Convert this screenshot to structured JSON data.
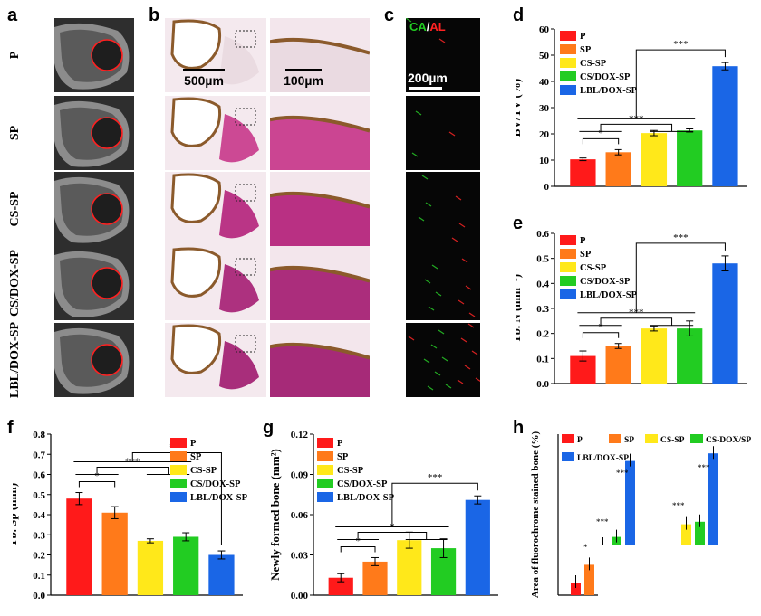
{
  "panel_letters": {
    "a": "a",
    "b": "b",
    "c": "c",
    "d": "d",
    "e": "e",
    "f": "f",
    "g": "g",
    "h": "h"
  },
  "row_labels": [
    "P",
    "SP",
    "CS-SP",
    "CS/DOX-SP",
    "LBL/DOX-SP"
  ],
  "scale_bars": {
    "b_left": "500µm",
    "b_right": "100µm",
    "c": "200µm"
  },
  "fluor_label": {
    "ca": "CA",
    "sep": "/",
    "al": "AL"
  },
  "colors": {
    "P": "#ff1a1a",
    "SP": "#ff7a1a",
    "CS-SP": "#ffe81a",
    "CS/DOX-SP": "#22cc22",
    "LBL/DOX-SP": "#1a66e6"
  },
  "chart_data": [
    {
      "id": "d",
      "type": "bar",
      "categories": [
        "P",
        "SP",
        "CS-SP",
        "CS/DOX-SP",
        "LBL/DOX-SP"
      ],
      "values": [
        10.3,
        13.0,
        20.3,
        21.3,
        45.8
      ],
      "errors": [
        0.5,
        1.0,
        1.0,
        0.6,
        1.4
      ],
      "ylabel": "BV/TV (%)",
      "ylim": [
        0,
        60
      ],
      "yticks": [
        0,
        10,
        20,
        30,
        40,
        50,
        60
      ],
      "ytick_labels": [
        "0",
        "10",
        "20",
        "30",
        "40",
        "50",
        "60"
      ],
      "legend": [
        "P",
        "SP",
        "CS-SP",
        "CS/DOX-SP",
        "LBL/DOX-SP"
      ],
      "legend_position": "top-left",
      "significance": [
        {
          "groups": [
            "P",
            "SP"
          ],
          "label": "*"
        },
        {
          "groups": [
            "P-SP",
            "CS-SP/CS/DOX-SP"
          ],
          "label": "***"
        },
        {
          "groups": [
            "all",
            "LBL/DOX-SP"
          ],
          "label": "***"
        }
      ]
    },
    {
      "id": "e",
      "type": "bar",
      "categories": [
        "P",
        "SP",
        "CS-SP",
        "CS/DOX-SP",
        "LBL/DOX-SP"
      ],
      "values": [
        0.11,
        0.15,
        0.22,
        0.22,
        0.48
      ],
      "errors": [
        0.02,
        0.01,
        0.01,
        0.03,
        0.03
      ],
      "ylabel": "Tb. N (mm⁻¹)",
      "ylim": [
        0,
        0.6
      ],
      "yticks": [
        0,
        0.1,
        0.2,
        0.3,
        0.4,
        0.5,
        0.6
      ],
      "ytick_labels": [
        "0.0",
        "0.1",
        "0.2",
        "0.3",
        "0.4",
        "0.5",
        "0.6"
      ],
      "legend": [
        "P",
        "SP",
        "CS-SP",
        "CS/DOX-SP",
        "LBL/DOX-SP"
      ],
      "legend_position": "top-left",
      "significance": [
        {
          "groups": [
            "P",
            "SP"
          ],
          "label": "*"
        },
        {
          "groups": [
            "P-SP",
            "CS-SP/CS/DOX-SP"
          ],
          "label": "***"
        },
        {
          "groups": [
            "all",
            "LBL/DOX-SP"
          ],
          "label": "***"
        }
      ]
    },
    {
      "id": "f",
      "type": "bar",
      "categories": [
        "P",
        "SP",
        "CS-SP",
        "CS/DOX-SP",
        "LBL/DOX-SP"
      ],
      "values": [
        0.48,
        0.41,
        0.27,
        0.29,
        0.2
      ],
      "errors": [
        0.03,
        0.03,
        0.01,
        0.02,
        0.02
      ],
      "ylabel": "Tb. Sp (mm)",
      "ylim": [
        0,
        0.8
      ],
      "yticks": [
        0,
        0.1,
        0.2,
        0.3,
        0.4,
        0.5,
        0.6,
        0.7,
        0.8
      ],
      "ytick_labels": [
        "0.0",
        "0.1",
        "0.2",
        "0.3",
        "0.4",
        "0.5",
        "0.6",
        "0.7",
        "0.8"
      ],
      "legend": [
        "P",
        "SP",
        "CS-SP",
        "CS/DOX-SP",
        "LBL/DOX-SP"
      ],
      "legend_position": "top-right",
      "significance": [
        {
          "groups": [
            "P",
            "SP"
          ],
          "label": "*"
        },
        {
          "groups": [
            "P-SP",
            "CS-SP/CS/DOX-SP"
          ],
          "label": "***"
        },
        {
          "groups": [
            "all",
            "LBL/DOX-SP"
          ],
          "label": "***"
        }
      ]
    },
    {
      "id": "g",
      "type": "bar",
      "categories": [
        "P",
        "SP",
        "CS-SP",
        "CS/DOX-SP",
        "LBL/DOX-SP"
      ],
      "values": [
        0.013,
        0.025,
        0.041,
        0.035,
        0.071
      ],
      "errors": [
        0.003,
        0.003,
        0.006,
        0.007,
        0.003
      ],
      "ylabel": "Newly formed bone (mm²)",
      "ylim": [
        0,
        0.12
      ],
      "yticks": [
        0,
        0.03,
        0.06,
        0.09,
        0.12
      ],
      "ytick_labels": [
        "0.00",
        "0.03",
        "0.06",
        "0.09",
        "0.12"
      ],
      "legend": [
        "P",
        "SP",
        "CS-SP",
        "CS/DOX-SP",
        "LBL/DOX-SP"
      ],
      "legend_position": "top-left",
      "significance": [
        {
          "groups": [
            "P",
            "SP"
          ],
          "label": "*"
        },
        {
          "groups": [
            "P-SP",
            "CS-SP/CS/DOX-SP"
          ],
          "label": "*"
        },
        {
          "groups": [
            "all",
            "LBL/DOX-SP"
          ],
          "label": "***"
        }
      ]
    },
    {
      "id": "h",
      "type": "bar",
      "ylabel": "Area of fluorochrome stained bone (%)",
      "legend": [
        "P",
        "SP",
        "CS-SP",
        "CS-DOX/SP",
        "LBL/DOX-SP"
      ],
      "legend_position": "top",
      "group_count": 2,
      "series_values": [
        [
          0.5,
          1.2,
          2.0,
          2.3,
          5.3
        ],
        [
          0.6,
          1.0,
          2.8,
          2.9,
          5.6
        ]
      ],
      "significance_labels": [
        "*",
        "***",
        "***",
        "***",
        "***"
      ]
    }
  ]
}
